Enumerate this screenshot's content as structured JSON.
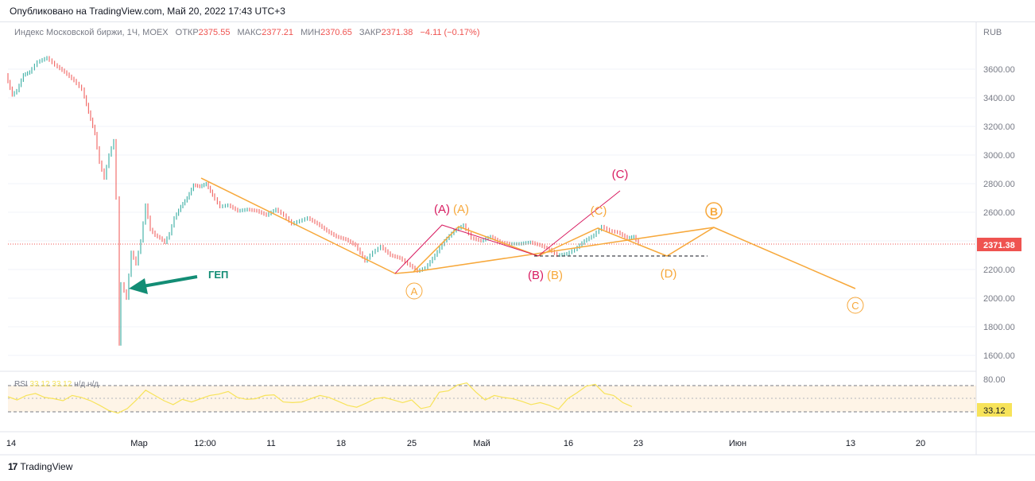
{
  "header": {
    "published": "Опубликовано на TradingView.com, Май 20, 2022 17:43 UTC+3"
  },
  "legend": {
    "symbol": "Индекс Московской биржи, 1Ч, MOEX",
    "open_label": "ОТКР",
    "open": "2375.55",
    "high_label": "МАКС",
    "high": "2377.21",
    "low_label": "МИН",
    "low": "2370.65",
    "close_label": "ЗАКР",
    "close": "2371.38",
    "change": "−4.11 (−0.17%)"
  },
  "rsi_legend": {
    "label": "RSI",
    "v1": "33.12",
    "v2": "33.12",
    "na1": "н/д",
    "na2": "н/д"
  },
  "price_axis": {
    "currency": "RUB",
    "ticks": [
      "3600.00",
      "3400.00",
      "3200.00",
      "3000.00",
      "2800.00",
      "2600.00",
      "2400.00",
      "2200.00",
      "2000.00",
      "1800.00",
      "1600.00"
    ],
    "last_price": "2371.38"
  },
  "rsi_axis": {
    "ticks": [
      "80.00"
    ],
    "last": "33.12"
  },
  "time_axis": {
    "ticks": [
      "14",
      "Мар",
      "12:00",
      "11",
      "18",
      "25",
      "Май",
      "16",
      "23",
      "Июн",
      "13",
      "20"
    ]
  },
  "annotations": {
    "gap": "ГЕП",
    "waves": [
      "(C)",
      "(A)",
      "(A)",
      "(C)",
      "B",
      "(B)",
      "(B)",
      "(D)",
      "A",
      "C"
    ]
  },
  "colors": {
    "up": "#26a69a",
    "down": "#ef5350",
    "orange": "#f7a83b",
    "magenta": "#d81b60",
    "teal": "#138d75",
    "rsi": "#f7e35a"
  },
  "footer": {
    "brand": "TradingView",
    "logo": "17"
  },
  "chart_data": {
    "type": "line",
    "title": "Индекс Московской биржи, 1Ч, MOEX",
    "ylabel": "RUB",
    "ylim": [
      1550,
      3800
    ],
    "price_path": [
      [
        0,
        3560
      ],
      [
        8,
        3420
      ],
      [
        14,
        3450
      ],
      [
        22,
        3560
      ],
      [
        30,
        3580
      ],
      [
        40,
        3650
      ],
      [
        52,
        3680
      ],
      [
        62,
        3630
      ],
      [
        74,
        3580
      ],
      [
        86,
        3520
      ],
      [
        96,
        3460
      ],
      [
        104,
        3300
      ],
      [
        112,
        3150
      ],
      [
        118,
        2950
      ],
      [
        124,
        2840
      ],
      [
        130,
        3000
      ],
      [
        136,
        3100
      ],
      [
        140,
        2700
      ],
      [
        142,
        1680
      ],
      [
        146,
        2100
      ],
      [
        152,
        2000
      ],
      [
        158,
        2320
      ],
      [
        164,
        2240
      ],
      [
        170,
        2400
      ],
      [
        176,
        2650
      ],
      [
        182,
        2480
      ],
      [
        188,
        2440
      ],
      [
        194,
        2420
      ],
      [
        200,
        2390
      ],
      [
        206,
        2450
      ],
      [
        212,
        2560
      ],
      [
        220,
        2640
      ],
      [
        228,
        2700
      ],
      [
        236,
        2790
      ],
      [
        244,
        2780
      ],
      [
        252,
        2800
      ],
      [
        260,
        2720
      ],
      [
        270,
        2640
      ],
      [
        280,
        2650
      ],
      [
        292,
        2610
      ],
      [
        304,
        2620
      ],
      [
        316,
        2610
      ],
      [
        328,
        2580
      ],
      [
        340,
        2620
      ],
      [
        350,
        2580
      ],
      [
        360,
        2520
      ],
      [
        370,
        2540
      ],
      [
        380,
        2560
      ],
      [
        392,
        2520
      ],
      [
        404,
        2470
      ],
      [
        416,
        2430
      ],
      [
        428,
        2410
      ],
      [
        440,
        2370
      ],
      [
        452,
        2260
      ],
      [
        462,
        2320
      ],
      [
        472,
        2360
      ],
      [
        484,
        2300
      ],
      [
        496,
        2280
      ],
      [
        506,
        2240
      ],
      [
        518,
        2190
      ],
      [
        528,
        2210
      ],
      [
        540,
        2300
      ],
      [
        552,
        2400
      ],
      [
        564,
        2470
      ],
      [
        576,
        2510
      ],
      [
        586,
        2420
      ],
      [
        598,
        2400
      ],
      [
        610,
        2430
      ],
      [
        622,
        2390
      ],
      [
        634,
        2380
      ],
      [
        646,
        2380
      ],
      [
        660,
        2390
      ],
      [
        672,
        2370
      ],
      [
        684,
        2340
      ],
      [
        694,
        2300
      ],
      [
        706,
        2310
      ],
      [
        716,
        2340
      ],
      [
        728,
        2400
      ],
      [
        740,
        2440
      ],
      [
        750,
        2500
      ],
      [
        760,
        2470
      ],
      [
        770,
        2460
      ],
      [
        782,
        2420
      ],
      [
        790,
        2430
      ],
      [
        796,
        2380
      ]
    ],
    "series": [
      {
        "name": "RSI",
        "values": [
          53,
          48,
          55,
          58,
          52,
          50,
          47,
          55,
          52,
          47,
          40,
          32,
          28,
          35,
          48,
          63,
          55,
          47,
          41,
          49,
          45,
          50,
          55,
          57,
          61,
          52,
          49,
          50,
          55,
          56,
          45,
          44,
          45,
          50,
          55,
          52,
          46,
          40,
          37,
          43,
          50,
          52,
          48,
          44,
          48,
          35,
          38,
          60,
          62,
          71,
          74,
          60,
          48,
          55,
          52,
          50,
          46,
          41,
          44,
          40,
          34,
          50,
          59,
          69,
          72,
          58,
          55,
          44,
          38
        ]
      }
    ]
  }
}
